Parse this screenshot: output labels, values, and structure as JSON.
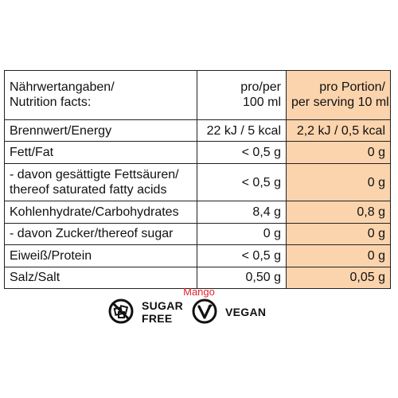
{
  "table": {
    "header": {
      "label_line1": "Nährwertangaben/",
      "label_line2": "Nutrition facts:",
      "per100_line1": "pro/per",
      "per100_line2": "100 ml",
      "serving_line1": "pro Portion/",
      "serving_line2": "per serving 10 ml"
    },
    "rows": [
      {
        "label": "Brennwert/Energy",
        "per100": "22 kJ / 5 kcal",
        "serving": "2,2 kJ / 0,5 kcal"
      },
      {
        "label": "Fett/Fat",
        "per100": "< 0,5 g",
        "serving": "0 g"
      },
      {
        "label_line1": "- davon gesättigte Fettsäuren/",
        "label_line2": "thereof saturated fatty acids",
        "per100": "< 0,5 g",
        "serving": "0 g"
      },
      {
        "label": "Kohlenhydrate/Carbohydrates",
        "per100": "8,4 g",
        "serving": "0,8 g"
      },
      {
        "label": " - davon Zucker/thereof sugar",
        "per100": "0 g",
        "serving": "0 g"
      },
      {
        "label": "Eiweiß/Protein",
        "per100": "< 0,5 g",
        "serving": "0 g"
      },
      {
        "label": "Salz/Salt",
        "per100": "0,50 g",
        "serving": "0,05 g"
      }
    ]
  },
  "footer": {
    "flavor": "Mango",
    "sugar_free_line1": "SUGAR",
    "sugar_free_line2": "FREE",
    "vegan": "VEGAN",
    "sugar_free_icon": "no-sugar-cubes-icon",
    "vegan_icon": "vegan-v-leaf-icon"
  },
  "colors": {
    "highlight": "#fbd4ad",
    "flavor_text": "#e0242a"
  }
}
